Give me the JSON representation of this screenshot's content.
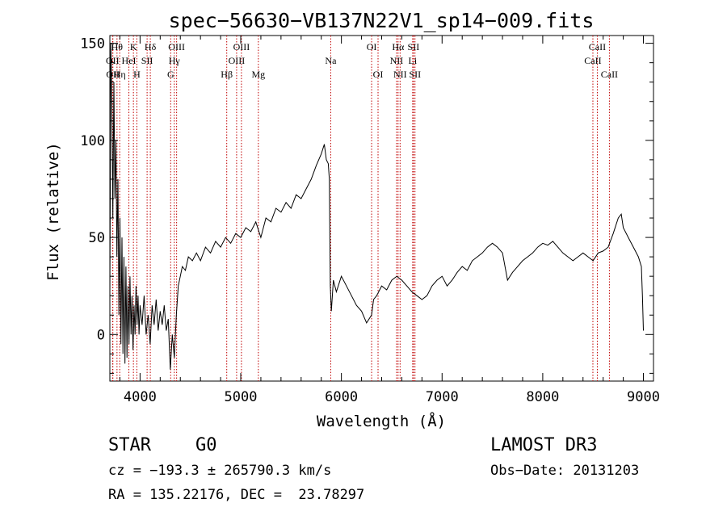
{
  "chart_data": {
    "type": "line",
    "title": "spec−56630−VB137N22V1_sp14−009.fits",
    "xlabel": "Wavelength (Å)",
    "ylabel": "Flux (relative)",
    "xlim": [
      3700,
      9100
    ],
    "ylim": [
      -24,
      154
    ],
    "xticks": [
      4000,
      5000,
      6000,
      7000,
      8000,
      9000
    ],
    "yticks": [
      0,
      50,
      100,
      150
    ],
    "grid": false,
    "series": [
      {
        "color": "#000000",
        "points": [
          [
            3700,
            20
          ],
          [
            3710,
            150
          ],
          [
            3720,
            120
          ],
          [
            3730,
            60
          ],
          [
            3740,
            130
          ],
          [
            3750,
            70
          ],
          [
            3760,
            100
          ],
          [
            3770,
            40
          ],
          [
            3780,
            80
          ],
          [
            3790,
            10
          ],
          [
            3800,
            60
          ],
          [
            3810,
            -5
          ],
          [
            3820,
            50
          ],
          [
            3830,
            -10
          ],
          [
            3840,
            40
          ],
          [
            3850,
            -15
          ],
          [
            3860,
            35
          ],
          [
            3870,
            -12
          ],
          [
            3880,
            25
          ],
          [
            3890,
            -5
          ],
          [
            3900,
            30
          ],
          [
            3910,
            0
          ],
          [
            3920,
            20
          ],
          [
            3930,
            -8
          ],
          [
            3940,
            15
          ],
          [
            3950,
            0
          ],
          [
            3960,
            25
          ],
          [
            3970,
            5
          ],
          [
            3980,
            20
          ],
          [
            3990,
            0
          ],
          [
            4000,
            15
          ],
          [
            4020,
            5
          ],
          [
            4040,
            20
          ],
          [
            4060,
            0
          ],
          [
            4080,
            10
          ],
          [
            4100,
            -5
          ],
          [
            4120,
            15
          ],
          [
            4140,
            5
          ],
          [
            4160,
            18
          ],
          [
            4180,
            2
          ],
          [
            4200,
            12
          ],
          [
            4220,
            5
          ],
          [
            4240,
            15
          ],
          [
            4260,
            2
          ],
          [
            4280,
            8
          ],
          [
            4300,
            -18
          ],
          [
            4320,
            0
          ],
          [
            4340,
            -12
          ],
          [
            4360,
            10
          ],
          [
            4380,
            25
          ],
          [
            4400,
            30
          ],
          [
            4420,
            35
          ],
          [
            4450,
            33
          ],
          [
            4480,
            40
          ],
          [
            4520,
            38
          ],
          [
            4560,
            42
          ],
          [
            4600,
            38
          ],
          [
            4650,
            45
          ],
          [
            4700,
            42
          ],
          [
            4750,
            48
          ],
          [
            4800,
            45
          ],
          [
            4850,
            50
          ],
          [
            4900,
            47
          ],
          [
            4950,
            52
          ],
          [
            5000,
            50
          ],
          [
            5050,
            55
          ],
          [
            5100,
            53
          ],
          [
            5150,
            58
          ],
          [
            5200,
            50
          ],
          [
            5250,
            60
          ],
          [
            5300,
            58
          ],
          [
            5350,
            65
          ],
          [
            5400,
            63
          ],
          [
            5450,
            68
          ],
          [
            5500,
            65
          ],
          [
            5550,
            72
          ],
          [
            5600,
            70
          ],
          [
            5650,
            75
          ],
          [
            5700,
            80
          ],
          [
            5750,
            87
          ],
          [
            5800,
            93
          ],
          [
            5830,
            98
          ],
          [
            5850,
            90
          ],
          [
            5870,
            88
          ],
          [
            5880,
            80
          ],
          [
            5890,
            25
          ],
          [
            5900,
            12
          ],
          [
            5920,
            28
          ],
          [
            5950,
            22
          ],
          [
            6000,
            30
          ],
          [
            6050,
            25
          ],
          [
            6100,
            20
          ],
          [
            6150,
            15
          ],
          [
            6200,
            12
          ],
          [
            6250,
            6
          ],
          [
            6300,
            10
          ],
          [
            6320,
            18
          ],
          [
            6350,
            20
          ],
          [
            6400,
            25
          ],
          [
            6450,
            23
          ],
          [
            6500,
            28
          ],
          [
            6550,
            30
          ],
          [
            6600,
            28
          ],
          [
            6650,
            25
          ],
          [
            6700,
            22
          ],
          [
            6750,
            20
          ],
          [
            6800,
            18
          ],
          [
            6850,
            20
          ],
          [
            6900,
            25
          ],
          [
            6950,
            28
          ],
          [
            7000,
            30
          ],
          [
            7050,
            25
          ],
          [
            7100,
            28
          ],
          [
            7150,
            32
          ],
          [
            7200,
            35
          ],
          [
            7250,
            33
          ],
          [
            7300,
            38
          ],
          [
            7350,
            40
          ],
          [
            7400,
            42
          ],
          [
            7450,
            45
          ],
          [
            7500,
            47
          ],
          [
            7550,
            45
          ],
          [
            7600,
            42
          ],
          [
            7650,
            28
          ],
          [
            7700,
            32
          ],
          [
            7750,
            35
          ],
          [
            7800,
            38
          ],
          [
            7850,
            40
          ],
          [
            7900,
            42
          ],
          [
            7950,
            45
          ],
          [
            8000,
            47
          ],
          [
            8050,
            46
          ],
          [
            8100,
            48
          ],
          [
            8150,
            45
          ],
          [
            8200,
            42
          ],
          [
            8250,
            40
          ],
          [
            8300,
            38
          ],
          [
            8350,
            40
          ],
          [
            8400,
            42
          ],
          [
            8450,
            40
          ],
          [
            8500,
            38
          ],
          [
            8550,
            42
          ],
          [
            8600,
            43
          ],
          [
            8650,
            45
          ],
          [
            8700,
            52
          ],
          [
            8750,
            60
          ],
          [
            8780,
            62
          ],
          [
            8800,
            55
          ],
          [
            8850,
            50
          ],
          [
            8900,
            45
          ],
          [
            8950,
            40
          ],
          [
            8980,
            35
          ],
          [
            8990,
            20
          ],
          [
            9000,
            2
          ]
        ]
      }
    ],
    "line_markers": [
      {
        "wavelength": 3727,
        "label": "OII",
        "row": 1
      },
      {
        "wavelength": 3730,
        "label": "OII",
        "row": 2
      },
      {
        "wavelength": 3771,
        "label": "Hθ",
        "row": 0
      },
      {
        "wavelength": 3798,
        "label": "Hη",
        "row": 2
      },
      {
        "wavelength": 3889,
        "label": "HeI",
        "row": 1
      },
      {
        "wavelength": 3934,
        "label": "K",
        "row": 0
      },
      {
        "wavelength": 3968,
        "label": "H",
        "row": 2
      },
      {
        "wavelength": 4070,
        "label": "SII",
        "row": 1
      },
      {
        "wavelength": 4102,
        "label": "Hδ",
        "row": 0
      },
      {
        "wavelength": 4304,
        "label": "G",
        "row": 2
      },
      {
        "wavelength": 4340,
        "label": "Hγ",
        "row": 1
      },
      {
        "wavelength": 4363,
        "label": "OIII",
        "row": 0
      },
      {
        "wavelength": 4861,
        "label": "Hβ",
        "row": 2
      },
      {
        "wavelength": 4959,
        "label": "OIII",
        "row": 1
      },
      {
        "wavelength": 5007,
        "label": "OIII",
        "row": 0
      },
      {
        "wavelength": 5175,
        "label": "Mg",
        "row": 2
      },
      {
        "wavelength": 5894,
        "label": "Na",
        "row": 1
      },
      {
        "wavelength": 6300,
        "label": "OI",
        "row": 0
      },
      {
        "wavelength": 6364,
        "label": "OI",
        "row": 2
      },
      {
        "wavelength": 6548,
        "label": "NII",
        "row": 1
      },
      {
        "wavelength": 6563,
        "label": "Hα",
        "row": 0
      },
      {
        "wavelength": 6583,
        "label": "NII",
        "row": 2
      },
      {
        "wavelength": 6708,
        "label": "Li",
        "row": 1
      },
      {
        "wavelength": 6716,
        "label": "SII",
        "row": 0
      },
      {
        "wavelength": 6731,
        "label": "SII",
        "row": 2
      },
      {
        "wavelength": 8498,
        "label": "CaII",
        "row": 1
      },
      {
        "wavelength": 8542,
        "label": "CaII",
        "row": 0
      },
      {
        "wavelength": 8662,
        "label": "CaII",
        "row": 2
      }
    ],
    "marker_color": "#c00000"
  },
  "info": {
    "classification": "STAR",
    "subclass": "G0",
    "survey": "LAMOST DR3",
    "cz": "cz = −193.3 ± 265790.3 km/s",
    "obs_date": "Obs−Date: 20131203",
    "coords": "RA = 135.22176, DEC =  23.78297"
  }
}
